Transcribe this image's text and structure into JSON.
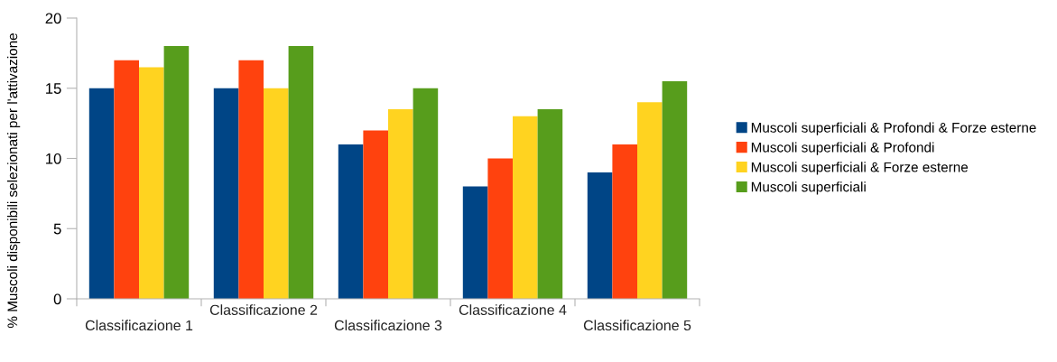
{
  "chart_data": {
    "type": "bar",
    "ylabel": "% Muscoli disponibili selezionati per l'attivazione",
    "categories": [
      "Classificazione 1",
      "Classificazione 2",
      "Classificazione 3",
      "Classificazione 4",
      "Classificazione 5"
    ],
    "series": [
      {
        "name": "Muscoli superficiali & Profondi & Forze esterne",
        "color": "#004586",
        "values": [
          15,
          15,
          11,
          8,
          9
        ]
      },
      {
        "name": "Muscoli superficiali & Profondi",
        "color": "#ff420e",
        "values": [
          17,
          17,
          12,
          10,
          11
        ]
      },
      {
        "name": "Muscoli superficiali & Forze esterne",
        "color": "#ffd320",
        "values": [
          16.5,
          15,
          13.5,
          13,
          14
        ]
      },
      {
        "name": "Muscoli superficiali",
        "color": "#579d1c",
        "values": [
          18,
          18,
          15,
          13.5,
          15.5
        ]
      }
    ],
    "ylim": [
      0,
      20
    ],
    "yticks": [
      0,
      5,
      10,
      15,
      20
    ],
    "grid": false,
    "legend": "right"
  }
}
